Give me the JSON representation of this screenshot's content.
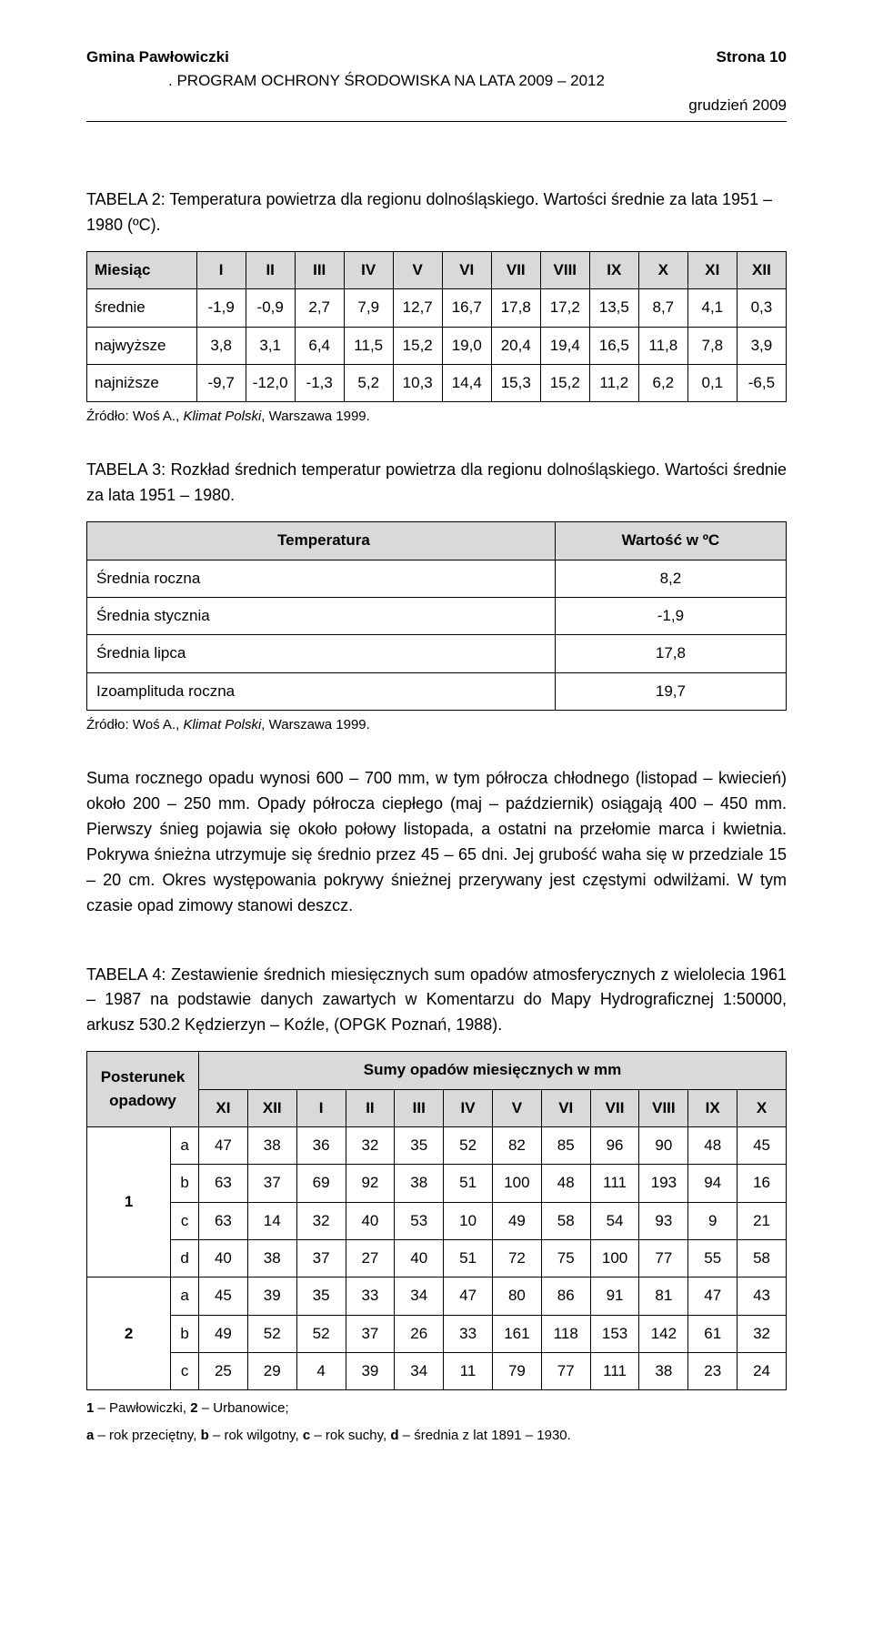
{
  "header": {
    "left": "Gmina Pawłowiczki",
    "right": "Strona 10",
    "program_prefix": ". ",
    "program": "PROGRAM OCHRONY ŚRODOWISKA NA LATA 2009 – 2012",
    "date": "grudzień 2009"
  },
  "t2": {
    "caption": "TABELA 2: Temperatura powietrza dla regionu dolnośląskiego. Wartości średnie za lata 1951 – 1980 (ºC).",
    "head": [
      "Miesiąc",
      "I",
      "II",
      "III",
      "IV",
      "V",
      "VI",
      "VII",
      "VIII",
      "IX",
      "X",
      "XI",
      "XII"
    ],
    "rows": [
      [
        "średnie",
        "-1,9",
        "-0,9",
        "2,7",
        "7,9",
        "12,7",
        "16,7",
        "17,8",
        "17,2",
        "13,5",
        "8,7",
        "4,1",
        "0,3"
      ],
      [
        "najwyższe",
        "3,8",
        "3,1",
        "6,4",
        "11,5",
        "15,2",
        "19,0",
        "20,4",
        "19,4",
        "16,5",
        "11,8",
        "7,8",
        "3,9"
      ],
      [
        "najniższe",
        "-9,7",
        "-12,0",
        "-1,3",
        "5,2",
        "10,3",
        "14,4",
        "15,3",
        "15,2",
        "11,2",
        "6,2",
        "0,1",
        "-6,5"
      ]
    ],
    "source_plain": "Źródło: Woś A., ",
    "source_italic": "Klimat Polski",
    "source_tail": ", Warszawa 1999."
  },
  "t3": {
    "caption": "TABELA 3: Rozkład średnich temperatur powietrza dla regionu dolnośląskiego. Wartości średnie za lata 1951 – 1980.",
    "head": [
      "Temperatura",
      "Wartość w ºC"
    ],
    "rows": [
      [
        "Średnia roczna",
        "8,2"
      ],
      [
        "Średnia stycznia",
        "-1,9"
      ],
      [
        "Średnia lipca",
        "17,8"
      ],
      [
        "Izoamplituda roczna",
        "19,7"
      ]
    ],
    "source_plain": "Źródło: Woś A., ",
    "source_italic": "Klimat Polski",
    "source_tail": ", Warszawa 1999."
  },
  "body_para": "Suma rocznego opadu wynosi 600 – 700 mm, w tym półrocza chłodnego (listopad – kwiecień) około 200 – 250 mm. Opady półrocza ciepłego (maj – październik) osiągają 400 – 450 mm. Pierwszy śnieg pojawia się około połowy listopada, a ostatni na przełomie marca i kwietnia. Pokrywa śnieżna utrzymuje się średnio przez 45 – 65 dni. Jej grubość waha się w przedziale 15 – 20 cm. Okres występowania pokrywy śnieżnej przerywany jest częstymi odwilżami. W tym czasie opad zimowy stanowi deszcz.",
  "t4": {
    "caption": "TABELA 4: Zestawienie średnich miesięcznych sum opadów atmosferycznych z wielolecia 1961 – 1987 na podstawie danych zawartych w Komentarzu do Mapy Hydrograficznej 1:50000, arkusz 530.2 Kędzierzyn – Koźle, (OPGK Poznań, 1988).",
    "head_top_left": "Posterunek opadowy",
    "head_top_right": "Sumy opadów miesięcznych w mm",
    "head_months": [
      "XI",
      "XII",
      "I",
      "II",
      "III",
      "IV",
      "V",
      "VI",
      "VII",
      "VIII",
      "IX",
      "X"
    ],
    "groups": [
      {
        "label": "1",
        "rows": [
          [
            "a",
            "47",
            "38",
            "36",
            "32",
            "35",
            "52",
            "82",
            "85",
            "96",
            "90",
            "48",
            "45"
          ],
          [
            "b",
            "63",
            "37",
            "69",
            "92",
            "38",
            "51",
            "100",
            "48",
            "111",
            "193",
            "94",
            "16"
          ],
          [
            "c",
            "63",
            "14",
            "32",
            "40",
            "53",
            "10",
            "49",
            "58",
            "54",
            "93",
            "9",
            "21"
          ],
          [
            "d",
            "40",
            "38",
            "37",
            "27",
            "40",
            "51",
            "72",
            "75",
            "100",
            "77",
            "55",
            "58"
          ]
        ]
      },
      {
        "label": "2",
        "rows": [
          [
            "a",
            "45",
            "39",
            "35",
            "33",
            "34",
            "47",
            "80",
            "86",
            "91",
            "81",
            "47",
            "43"
          ],
          [
            "b",
            "49",
            "52",
            "52",
            "37",
            "26",
            "33",
            "161",
            "118",
            "153",
            "142",
            "61",
            "32"
          ],
          [
            "c",
            "25",
            "29",
            "4",
            "39",
            "34",
            "11",
            "79",
            "77",
            "111",
            "38",
            "23",
            "24"
          ]
        ]
      }
    ],
    "foot1_bold1": "1",
    "foot1_text1": " – Pawłowiczki, ",
    "foot1_bold2": "2",
    "foot1_text2": " – Urbanowice;",
    "foot2_bold_a": "a",
    "foot2_t1": " – rok przeciętny, ",
    "foot2_bold_b": "b",
    "foot2_t2": " – rok wilgotny, ",
    "foot2_bold_c": "c",
    "foot2_t3": " – rok suchy, ",
    "foot2_bold_d": "d",
    "foot2_t4": " – średnia z lat 1891 – 1930."
  },
  "colors": {
    "header_bg": "#d9d9d9",
    "border": "#000000",
    "text": "#000000",
    "page_bg": "#ffffff"
  }
}
